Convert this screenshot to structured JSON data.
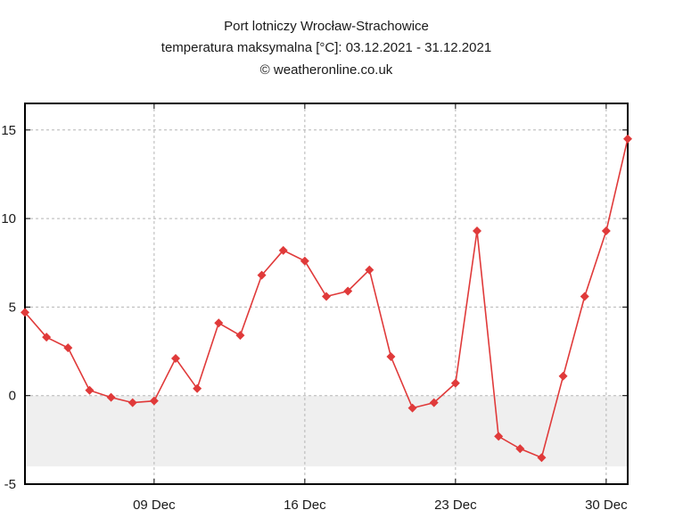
{
  "chart_data": {
    "type": "line",
    "title": "Port lotniczy Wrocław-Strachowice",
    "subtitle": "temperatura maksymalna [°C]: 03.12.2021 - 31.12.2021",
    "credit": "© weatheronline.co.uk",
    "xlabel": "",
    "ylabel": "",
    "x": [
      "2021-12-03",
      "2021-12-04",
      "2021-12-05",
      "2021-12-06",
      "2021-12-07",
      "2021-12-08",
      "2021-12-09",
      "2021-12-10",
      "2021-12-11",
      "2021-12-12",
      "2021-12-13",
      "2021-12-14",
      "2021-12-15",
      "2021-12-16",
      "2021-12-17",
      "2021-12-18",
      "2021-12-19",
      "2021-12-20",
      "2021-12-21",
      "2021-12-22",
      "2021-12-23",
      "2021-12-24",
      "2021-12-25",
      "2021-12-26",
      "2021-12-27",
      "2021-12-28",
      "2021-12-29",
      "2021-12-30",
      "2021-12-31"
    ],
    "series": [
      {
        "name": "",
        "values": [
          4.7,
          3.3,
          2.7,
          0.3,
          -0.1,
          -0.4,
          -0.3,
          2.1,
          0.4,
          4.1,
          3.4,
          6.8,
          8.2,
          7.6,
          5.6,
          5.9,
          7.1,
          2.2,
          -0.7,
          -0.4,
          0.7,
          9.3,
          -2.3,
          -3.0,
          -3.5,
          1.1,
          5.6,
          9.3,
          14.5
        ]
      }
    ],
    "xticks": [
      {
        "date": "2021-12-09",
        "label": "09 Dec"
      },
      {
        "date": "2021-12-16",
        "label": "16 Dec"
      },
      {
        "date": "2021-12-23",
        "label": "23 Dec"
      },
      {
        "date": "2021-12-30",
        "label": "30 Dec"
      }
    ],
    "yticks": [
      15,
      10,
      5,
      0,
      -5
    ],
    "ylim": [
      -5,
      16.5
    ],
    "xlim": [
      "2021-12-03",
      "2021-12-31"
    ],
    "below_zero_shading_to": -4,
    "grid": true,
    "legend": "none",
    "colors": {
      "line": "#e03a3a",
      "marker": "#e03a3a",
      "shading": "#efefef",
      "grid": "#b5b5b5"
    }
  }
}
